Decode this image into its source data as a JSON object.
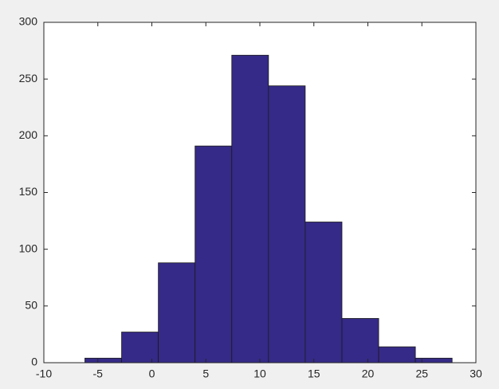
{
  "chart_data": {
    "type": "histogram",
    "bins": [
      -6.2,
      -2.8,
      0.6,
      4.0,
      7.4,
      10.8,
      14.2,
      17.6,
      21.0,
      24.4,
      27.8
    ],
    "values": [
      4,
      27,
      88,
      191,
      271,
      244,
      124,
      39,
      14,
      4
    ],
    "color": "#352a87",
    "xlim": [
      -10,
      30
    ],
    "xticks": [
      -10,
      -5,
      0,
      5,
      10,
      15,
      20,
      25,
      30
    ],
    "ylim": [
      0,
      300
    ],
    "yticks": [
      0,
      50,
      100,
      150,
      200,
      250,
      300
    ],
    "grid": false
  }
}
